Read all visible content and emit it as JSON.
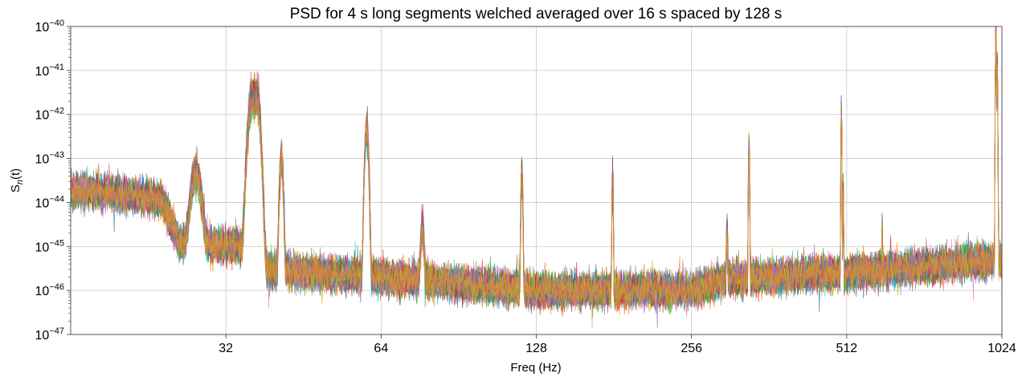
{
  "chart_data": {
    "type": "line",
    "title": "PSD for 4 s long segments welched averaged over 16 s spaced by 128 s",
    "xlabel": "Freq (Hz)",
    "ylabel_base": "S",
    "ylabel_sub": "n",
    "ylabel_suffix": "(t)",
    "x_scale": "log2",
    "y_scale": "log10",
    "xlim": [
      16,
      1024
    ],
    "ylim": [
      1e-47,
      1e-40
    ],
    "x_ticks": [
      32,
      64,
      128,
      256,
      512,
      1024
    ],
    "x_tick_labels": [
      "32",
      "64",
      "128",
      "256",
      "512",
      "1024"
    ],
    "y_tick_labels": [
      {
        "base": "10",
        "exp": "−47"
      },
      {
        "base": "10",
        "exp": "−46"
      },
      {
        "base": "10",
        "exp": "−45"
      },
      {
        "base": "10",
        "exp": "−44"
      },
      {
        "base": "10",
        "exp": "−43"
      },
      {
        "base": "10",
        "exp": "−42"
      },
      {
        "base": "10",
        "exp": "−41"
      },
      {
        "base": "10",
        "exp": "−40"
      }
    ],
    "grid": true,
    "legend": "none",
    "series_count": 40,
    "series_colors": [
      "#1f77b4",
      "#ff7f0e",
      "#2ca02c",
      "#d62728",
      "#9467bd",
      "#8c564b",
      "#e377c2",
      "#7f7f7f",
      "#bcbd22",
      "#17becf"
    ],
    "top_series_color": "#dd8332",
    "baseline": [
      [
        16,
        2e-44
      ],
      [
        24,
        1.2e-44
      ],
      [
        26,
        1.2e-45
      ],
      [
        35,
        1e-45
      ],
      [
        37,
        3e-46
      ],
      [
        64,
        2e-46
      ],
      [
        128,
        1e-46
      ],
      [
        256,
        1e-46
      ],
      [
        300,
        1.8e-46
      ],
      [
        512,
        2.5e-46
      ],
      [
        1024,
        5e-46
      ]
    ],
    "spectral_lines": [
      {
        "f": 28,
        "peak": 5e-44,
        "width": 0.4
      },
      {
        "f": 35.9,
        "peak": 2e-42,
        "width": 0.35
      },
      {
        "f": 36.7,
        "peak": 2.5e-42,
        "width": 0.35
      },
      {
        "f": 41,
        "peak": 1e-43,
        "width": 0.2
      },
      {
        "f": 60,
        "peak": 5e-43,
        "width": 0.3
      },
      {
        "f": 77,
        "peak": 2.5e-45,
        "width": 0.4
      },
      {
        "f": 120,
        "peak": 5e-44,
        "width": 0.3
      },
      {
        "f": 180,
        "peak": 4e-44,
        "width": 0.3
      },
      {
        "f": 300,
        "peak": 2e-45,
        "width": 0.6
      },
      {
        "f": 331,
        "peak": 1.8e-43,
        "width": 0.5
      },
      {
        "f": 500,
        "peak": 1e-42,
        "width": 0.6
      },
      {
        "f": 504,
        "peak": 2e-44,
        "width": 0.6
      },
      {
        "f": 600,
        "peak": 2e-45,
        "width": 0.6
      },
      {
        "f": 997,
        "peak": 1e-40,
        "width": 1.2
      },
      {
        "f": 1003,
        "peak": 1e-41,
        "width": 1.2
      }
    ]
  }
}
